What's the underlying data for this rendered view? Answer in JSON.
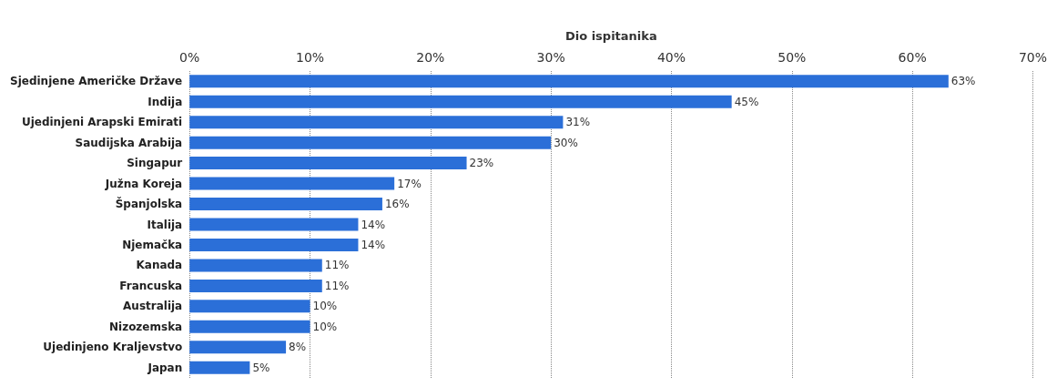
{
  "chart_data": {
    "type": "bar",
    "orientation": "horizontal",
    "xlabel": "Dio ispitanika",
    "categories": [
      "Sjedinjene Američke Države",
      "Indija",
      "Ujedinjeni Arapski Emirati",
      "Saudijska Arabija",
      "Singapur",
      "Južna Koreja",
      "Španjolska",
      "Italija",
      "Njemačka",
      "Kanada",
      "Francuska",
      "Australija",
      "Nizozemska",
      "Ujedinjeno Kraljevstvo",
      "Japan"
    ],
    "values": [
      63,
      45,
      31,
      30,
      23,
      17,
      16,
      14,
      14,
      11,
      11,
      10,
      10,
      8,
      5
    ],
    "value_labels": [
      "63%",
      "45%",
      "31%",
      "30%",
      "23%",
      "17%",
      "16%",
      "14%",
      "14%",
      "11%",
      "11%",
      "10%",
      "10%",
      "8%",
      "5%"
    ],
    "color": "#2b6fd8",
    "xlim": [
      0,
      70
    ],
    "xticks": [
      {
        "value": 0,
        "label": "0%"
      },
      {
        "value": 10,
        "label": "10%"
      },
      {
        "value": 20,
        "label": "20%"
      },
      {
        "value": 30,
        "label": "30%"
      },
      {
        "value": 40,
        "label": "40%"
      },
      {
        "value": 50,
        "label": "50%"
      },
      {
        "value": 60,
        "label": "60%"
      },
      {
        "value": 70,
        "label": "70%"
      }
    ],
    "grid": "x"
  }
}
